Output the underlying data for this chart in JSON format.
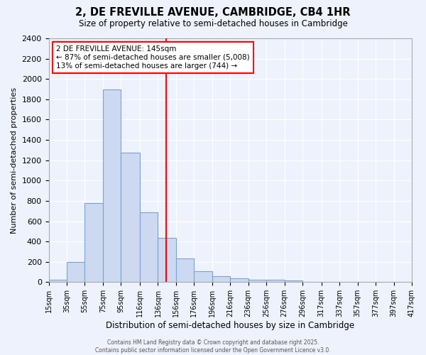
{
  "title": "2, DE FREVILLE AVENUE, CAMBRIDGE, CB4 1HR",
  "subtitle": "Size of property relative to semi-detached houses in Cambridge",
  "xlabel": "Distribution of semi-detached houses by size in Cambridge",
  "ylabel": "Number of semi-detached properties",
  "bar_color": "#ccd9f0",
  "bar_edge_color": "#7aa3d4",
  "background_color": "#eef2fc",
  "grid_color": "#ffffff",
  "vline_x": 145,
  "vline_color": "red",
  "annotation_line1": "2 DE FREVILLE AVENUE: 145sqm",
  "annotation_line2": "← 87% of semi-detached houses are smaller (5,008)",
  "annotation_line3": "13% of semi-detached houses are larger (744) →",
  "footer": "Contains HM Land Registry data © Crown copyright and database right 2025.\nContains public sector information licensed under the Open Government Licence v3.0.",
  "bins": [
    15,
    35,
    55,
    75,
    95,
    116,
    136,
    156,
    176,
    196,
    216,
    236,
    256,
    276,
    296,
    317,
    337,
    357,
    377,
    397,
    417
  ],
  "counts": [
    25,
    200,
    775,
    1900,
    1275,
    690,
    435,
    230,
    105,
    60,
    35,
    25,
    20,
    15,
    0,
    0,
    0,
    0,
    0,
    0
  ],
  "ylim": [
    0,
    2400
  ],
  "yticks": [
    0,
    200,
    400,
    600,
    800,
    1000,
    1200,
    1400,
    1600,
    1800,
    2000,
    2200,
    2400
  ],
  "tick_labels": [
    "15sqm",
    "35sqm",
    "55sqm",
    "75sqm",
    "95sqm",
    "116sqm",
    "136sqm",
    "156sqm",
    "176sqm",
    "196sqm",
    "216sqm",
    "236sqm",
    "256sqm",
    "276sqm",
    "296sqm",
    "317sqm",
    "337sqm",
    "357sqm",
    "377sqm",
    "397sqm",
    "417sqm"
  ]
}
